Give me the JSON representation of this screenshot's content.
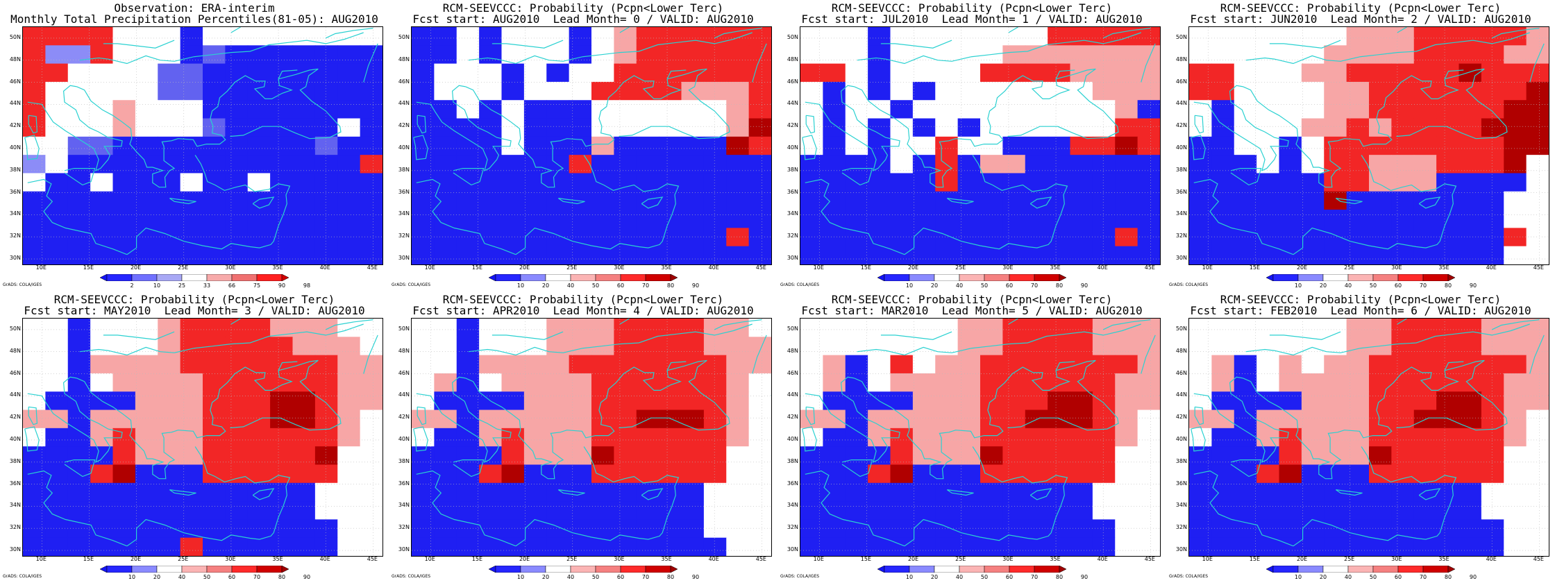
{
  "panels": [
    {
      "title1": "Observation: ERA-interim",
      "title2": "Monthly Total Precipitation Percentiles(81-05): AUG2010",
      "colorbar": "obs"
    },
    {
      "title1": "RCM-SEEVCCC: Probability (Pcpn<Lower Terc)",
      "title2": "Fcst start: AUG2010  Lead Month= 0 / VALID: AUG2010",
      "colorbar": "prob"
    },
    {
      "title1": "RCM-SEEVCCC: Probability (Pcpn<Lower Terc)",
      "title2": "Fcst start: JUL2010  Lead Month= 1 / VALID: AUG2010",
      "colorbar": "prob"
    },
    {
      "title1": "RCM-SEEVCCC: Probability (Pcpn<Lower Terc)",
      "title2": "Fcst start: JUN2010  Lead Month= 2 / VALID: AUG2010",
      "colorbar": "prob"
    },
    {
      "title1": "RCM-SEEVCCC: Probability (Pcpn<Lower Terc)",
      "title2": "Fcst start: MAY2010  Lead Month= 3 / VALID: AUG2010",
      "colorbar": "prob"
    },
    {
      "title1": "RCM-SEEVCCC: Probability (Pcpn<Lower Terc)",
      "title2": "Fcst start: APR2010  Lead Month= 4 / VALID: AUG2010",
      "colorbar": "prob"
    },
    {
      "title1": "RCM-SEEVCCC: Probability (Pcpn<Lower Terc)",
      "title2": "Fcst start: MAR2010  Lead Month= 5 / VALID: AUG2010",
      "colorbar": "prob"
    },
    {
      "title1": "RCM-SEEVCCC: Probability (Pcpn<Lower Terc)",
      "title2": "Fcst start: FEB2010  Lead Month= 6 / VALID: AUG2010",
      "colorbar": "prob"
    }
  ],
  "map": {
    "lat_labels": [
      "50N",
      "48N",
      "46N",
      "44N",
      "42N",
      "40N",
      "38N",
      "36N",
      "34N",
      "32N",
      "30N"
    ],
    "lon_labels": [
      "10E",
      "15E",
      "20E",
      "25E",
      "30E",
      "35E",
      "40E",
      "45E"
    ],
    "coastline_color": "#2ad1d1",
    "grid_color": "#bbbbbb"
  },
  "colorbars": {
    "obs": {
      "labels": [
        "2",
        "10",
        "25",
        "33",
        "66",
        "75",
        "90",
        "98"
      ],
      "colors": [
        "#1414f5",
        "#2626ff",
        "#7070ff",
        "#a8a8f5",
        "#ffffff",
        "#f7aaaa",
        "#f07070",
        "#ff2020",
        "#d20000"
      ]
    },
    "prob": {
      "labels": [
        "10",
        "20",
        "40",
        "50",
        "60",
        "70",
        "80",
        "90"
      ],
      "colors": [
        "#1414f5",
        "#2626ff",
        "#8a8aff",
        "#ffffff",
        "#fbb4b4",
        "#f58080",
        "#ff2a2a",
        "#d00000",
        "#a00000"
      ]
    }
  },
  "credit": "GrADS: COLA/IGES",
  "fields": [
    [
      "RRRRWWWBWWWWWWWW",
      "RLLRWWWBMBBBBBBB",
      "RRWWWWMMBBBBBBBB",
      "RWWWWWMMBBBBBBBB",
      "RWWWPWWWBBBBBBBB",
      "RWWWPWWWMBBBBBWB",
      "WWMMBBBBBBBBBMBB",
      "LWBBBBBBBBBBBBBR",
      "WBBWBBBWBBWBBBBB",
      "BBBBBBBBBBBBBBBB",
      "BBBBBBBBBBBBBBBB",
      "BBBBBBBBBBBBBBBB",
      "BBBBBBBBBBBBBBBB"
    ],
    [
      "BBWBWWWBWPRRRRRR",
      "BBWBWWWBWPRRRRRR",
      "BWWWBWBWWRRRRRRR",
      "BWWWBWWWRRRRPPPR",
      "BBWBWBBBWWWWWWPR",
      "BBBBWBBBWWWWWWPD",
      "BBBBWBBBPBBBBBDR",
      "BBBBBBBRBBBBBBBB",
      "BBBBBBBBBBBBBBBB",
      "BBBBBBBBBBBBBBBB",
      "BBBBBBBBBBBBBBBB",
      "BBBBBBBBBBBBBBRB",
      "BBBBBBBBBBBBBBBB"
    ],
    [
      "WWWBWWWWWWWRRRRR",
      "WWWBWWWWWPPPPPPP",
      "RRWBWWWWRRRRPPPP",
      "WBWBWBWWWWWWWPPP",
      "WBWWBWWWWWWWWWPB",
      "WBWBWBWBWWWWWWRR",
      "WBWBWWRWWBBBRRDR",
      "BBBBWBRBPPBBBBBB",
      "BBBBBBRBBBBBBBBB",
      "BBBBBBBBBBBBBBBB",
      "BBBBBBBBBBBBBBBB",
      "BBBBBBBBBBBBBBRB",
      "BBBBBBBBBBBBBBBB"
    ],
    [
      "WWWWWWWPPPRRRRRP",
      "WWWWWWPPPPRRRRPP",
      "RRWWWPPRRRRRDRRR",
      "RRWWWWPPRRRRRRRD",
      "WBWWWWPPRRRRRRDD",
      "WBWWWPPRPRRRRDDD",
      "BBWWBWRRRRRRRRDD",
      "BBBWBWRRPPPRRRDW",
      "BBBBBBRRPPPBBBBW",
      "BBBBBBDBBBBBBBWW",
      "BBBBBBBBBBBBBBWW",
      "BBBBBBBBBBBBBBRW",
      "BBBBBBBBBBBBBBWW"
    ],
    [
      "WWBWWWPRRRRPPPWW",
      "WWBWWWPRRRRRPPPW",
      "WWBPPPPRRRRRRRPP",
      "WWBWPPPPRRRRRRPP",
      "WBBBBPPPRRRDDRPP",
      "PPBPPPPPRRRDDRPW",
      "WBBPRPPPRRRRRRPW",
      "BBBBRPPPRRRRRDWW",
      "BBBRDBBBRRRRRRWW",
      "BBBBBBBBBBBBBWWW",
      "BBBBBBBBBBBBBWWW",
      "BBBBBBBBBBBBBBWW",
      "BBBBBBBRBBBBBBWW"
    ],
    [
      "WWBWWWPPPRRRRPPW",
      "WWBWWWPPPRRRRPPP",
      "WWBPPPPRRRRRRRPP",
      "WPBWPPPPRRRRRRPW",
      "WBBBBPPPRRRRRRPW",
      "PPBPPPPPRRDDDRPW",
      "WBBPRPPPRRRRRRPW",
      "BBBBRPPPDRRRRRWW",
      "BBBRDBBBRRRRRRWW",
      "BBBBBBBBBBBBBWWW",
      "BBBBBBBBBBBBBWWW",
      "BBBBBBBBBBBBBWWW",
      "BBBBBBBBBBBBBBWW"
    ],
    [
      "WWWWWWWPPRRRRPPP",
      "WWWWWWWPPRRRRPPP",
      "WPBWRWPPRRRRRRRP",
      "WPBWPPPPRRRRRRPP",
      "WBBBBPPPRRRDDRPP",
      "PPBPPPPPRRDDDRPW",
      "WBBPRPPPRRRRRRPW",
      "BBBBRPPPDRRRRRWW",
      "BBBRDBBBRRRRRRWW",
      "BBBBBBBBBBBBBWWW",
      "BBBBBBBBBBBBBWWW",
      "BBBBBBBBBBBBBBWW",
      "BBBBBBBBBBBBBBWW"
    ],
    [
      "WWWWWWWPPRRRRPPP",
      "WWWWWWWPPRRRRPPP",
      "WPBWPWPPRRRRRRRP",
      "WPBWPPPPRRRRRRPP",
      "WBBBBPPPRRRDDRPP",
      "PPBPPPPPRRDDDRPW",
      "WBBPRPPPRRRRRRPW",
      "BBBBRPPPDRRRRRWW",
      "BBBRDBBBRRRRRRWW",
      "BBBBBBBBBBBBBWWW",
      "BBBBBBBBBBBBBWWW",
      "BBBBBBBBBBBBBBWW",
      "BBBBBBBBBBBBBBWW"
    ]
  ],
  "category_colors": {
    "B": "#1f1ff2",
    "L": "#8c8cf7",
    "M": "#6262f0",
    "W": "#ffffff",
    "P": "#f7a6a6",
    "R": "#f22626",
    "D": "#b00000"
  }
}
